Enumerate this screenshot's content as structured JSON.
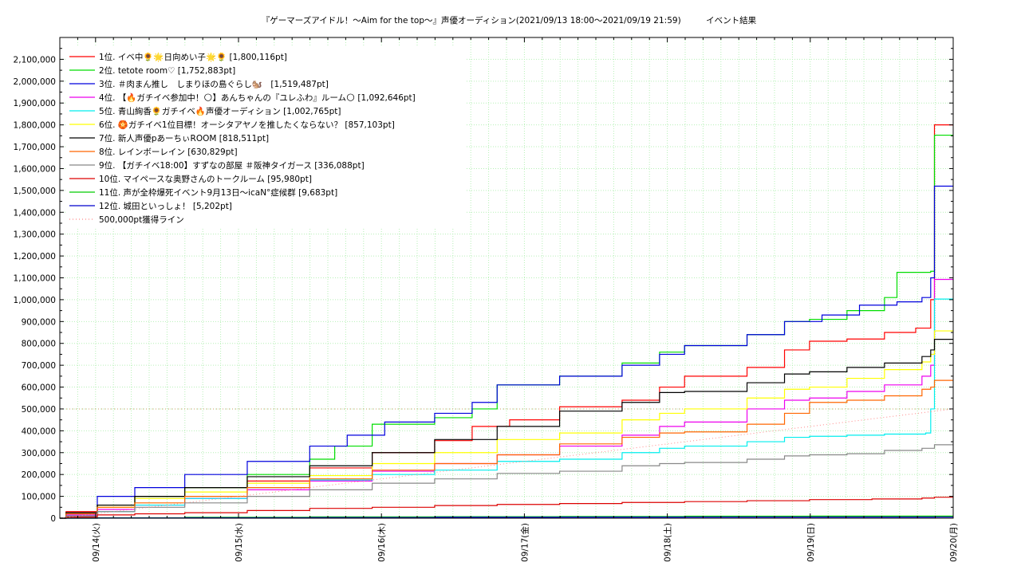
{
  "chart_data": {
    "type": "line",
    "title": "『ゲーマーズアイドル！〜Aim for the top～』声優オーディション(2021/09/13 18:00〜2021/09/19 21:59)　　　イベント結果",
    "xlabel": "",
    "ylabel": "",
    "x_ticks": [
      "09/14(火)",
      "09/15(水)",
      "09/16(木)",
      "09/17(金)",
      "09/18(土)",
      "09/19(日)",
      "09/20(月)"
    ],
    "x_range": [
      "09/13 18:00",
      "09/20 00:00"
    ],
    "ylim": [
      0,
      2200000
    ],
    "y_ticks": [
      0,
      100000,
      200000,
      300000,
      400000,
      500000,
      600000,
      700000,
      800000,
      900000,
      1000000,
      1100000,
      1200000,
      1300000,
      1400000,
      1500000,
      1600000,
      1700000,
      1800000,
      1900000,
      2000000,
      2100000
    ],
    "y_tick_labels": [
      "0",
      "100,000",
      "200,000",
      "300,000",
      "400,000",
      "500,000",
      "600,000",
      "700,000",
      "800,000",
      "900,000",
      "1,000,000",
      "1,100,000",
      "1,200,000",
      "1,300,000",
      "1,400,000",
      "1,500,000",
      "1,600,000",
      "1,700,000",
      "1,800,000",
      "1,900,000",
      "2,000,000",
      "2,100,000"
    ],
    "grid": true,
    "legend_position": "top-left",
    "series": [
      {
        "name": "1位. イベ中🌻🌟日向めい子🌟🌻 [1,800,116pt]",
        "color": "#ff0000",
        "points": [
          [
            0,
            0
          ],
          [
            0.05,
            30000
          ],
          [
            0.3,
            60000
          ],
          [
            0.6,
            100000
          ],
          [
            1,
            140000
          ],
          [
            1.5,
            170000
          ],
          [
            2,
            230000
          ],
          [
            2.5,
            300000
          ],
          [
            3,
            355000
          ],
          [
            3.3,
            420000
          ],
          [
            3.6,
            450000
          ],
          [
            4,
            510000
          ],
          [
            4.5,
            540000
          ],
          [
            4.8,
            600000
          ],
          [
            5,
            650000
          ],
          [
            5.5,
            690000
          ],
          [
            5.8,
            770000
          ],
          [
            6,
            810000
          ],
          [
            6.3,
            820000
          ],
          [
            6.6,
            850000
          ],
          [
            6.85,
            870000
          ],
          [
            6.97,
            1000000
          ],
          [
            7.0,
            1800116
          ],
          [
            7.15,
            1800116
          ]
        ]
      },
      {
        "name": "2位. tetote room♡ [1,752,883pt]",
        "color": "#00dd00",
        "points": [
          [
            0,
            0
          ],
          [
            0.05,
            25000
          ],
          [
            0.3,
            60000
          ],
          [
            0.6,
            100000
          ],
          [
            1,
            140000
          ],
          [
            1.5,
            200000
          ],
          [
            2,
            270000
          ],
          [
            2.2,
            330000
          ],
          [
            2.5,
            430000
          ],
          [
            3,
            460000
          ],
          [
            3.3,
            500000
          ],
          [
            3.5,
            610000
          ],
          [
            4,
            650000
          ],
          [
            4.5,
            710000
          ],
          [
            4.8,
            760000
          ],
          [
            5,
            790000
          ],
          [
            5.5,
            840000
          ],
          [
            5.8,
            900000
          ],
          [
            6,
            910000
          ],
          [
            6.3,
            950000
          ],
          [
            6.6,
            1010000
          ],
          [
            6.7,
            1125000
          ],
          [
            6.97,
            1130000
          ],
          [
            7.0,
            1752883
          ],
          [
            7.15,
            1752883
          ]
        ]
      },
      {
        "name": "3位. ＃肉まん推し　しまりほの島ぐらし🐿️　[1,519,487pt]",
        "color": "#0000dd",
        "points": [
          [
            0,
            0
          ],
          [
            0.05,
            20000
          ],
          [
            0.3,
            100000
          ],
          [
            0.6,
            140000
          ],
          [
            1,
            200000
          ],
          [
            1.5,
            260000
          ],
          [
            2,
            330000
          ],
          [
            2.3,
            380000
          ],
          [
            2.6,
            440000
          ],
          [
            3,
            480000
          ],
          [
            3.3,
            530000
          ],
          [
            3.5,
            610000
          ],
          [
            4,
            650000
          ],
          [
            4.5,
            700000
          ],
          [
            4.8,
            750000
          ],
          [
            5,
            790000
          ],
          [
            5.5,
            840000
          ],
          [
            5.8,
            900000
          ],
          [
            6.1,
            930000
          ],
          [
            6.4,
            975000
          ],
          [
            6.7,
            990000
          ],
          [
            6.9,
            1010000
          ],
          [
            6.97,
            1100000
          ],
          [
            7.0,
            1519487
          ],
          [
            7.15,
            1519487
          ]
        ]
      },
      {
        "name": "4位. 【🔥ガチイベ参加中！🌕】あんちゃんの『ユレふわ』ルーム🌕 [1,092,646pt]",
        "color": "#ee00ee",
        "points": [
          [
            0,
            0
          ],
          [
            0.05,
            15000
          ],
          [
            0.3,
            40000
          ],
          [
            0.6,
            60000
          ],
          [
            1,
            90000
          ],
          [
            1.5,
            130000
          ],
          [
            2,
            170000
          ],
          [
            2.5,
            215000
          ],
          [
            3,
            250000
          ],
          [
            3.5,
            290000
          ],
          [
            4,
            330000
          ],
          [
            4.5,
            380000
          ],
          [
            4.8,
            420000
          ],
          [
            5,
            440000
          ],
          [
            5.5,
            500000
          ],
          [
            5.8,
            540000
          ],
          [
            6,
            550000
          ],
          [
            6.3,
            580000
          ],
          [
            6.6,
            610000
          ],
          [
            6.9,
            650000
          ],
          [
            6.97,
            700000
          ],
          [
            7.0,
            1092646
          ],
          [
            7.15,
            1092646
          ]
        ]
      },
      {
        "name": "5位. 青山絢香🌻ガチイベ🔥声優オーディション [1,002,765pt]",
        "color": "#00eeee",
        "points": [
          [
            0,
            0
          ],
          [
            0.05,
            10000
          ],
          [
            0.3,
            30000
          ],
          [
            0.6,
            60000
          ],
          [
            1,
            90000
          ],
          [
            1.5,
            140000
          ],
          [
            2,
            175000
          ],
          [
            2.5,
            200000
          ],
          [
            3,
            220000
          ],
          [
            3.5,
            260000
          ],
          [
            4,
            270000
          ],
          [
            4.5,
            300000
          ],
          [
            4.8,
            320000
          ],
          [
            5,
            330000
          ],
          [
            5.5,
            350000
          ],
          [
            5.8,
            370000
          ],
          [
            6,
            375000
          ],
          [
            6.3,
            380000
          ],
          [
            6.6,
            385000
          ],
          [
            6.93,
            390000
          ],
          [
            6.97,
            500000
          ],
          [
            7.0,
            1002765
          ],
          [
            7.15,
            1002765
          ]
        ]
      },
      {
        "name": "6位. 🏵️ガチイベ1位目標！オーシタアヤノを推したくならない？ [857,103pt]",
        "color": "#ffff00",
        "points": [
          [
            0,
            0
          ],
          [
            0.05,
            20000
          ],
          [
            0.3,
            50000
          ],
          [
            0.6,
            90000
          ],
          [
            1,
            120000
          ],
          [
            1.5,
            160000
          ],
          [
            2,
            195000
          ],
          [
            2.5,
            250000
          ],
          [
            3,
            300000
          ],
          [
            3.5,
            360000
          ],
          [
            4,
            390000
          ],
          [
            4.5,
            450000
          ],
          [
            4.8,
            480000
          ],
          [
            5,
            500000
          ],
          [
            5.5,
            550000
          ],
          [
            5.8,
            590000
          ],
          [
            6,
            600000
          ],
          [
            6.3,
            640000
          ],
          [
            6.6,
            680000
          ],
          [
            6.9,
            715000
          ],
          [
            6.97,
            750000
          ],
          [
            7.0,
            857103
          ],
          [
            7.15,
            857103
          ]
        ]
      },
      {
        "name": "7位. 新人声優pあーちぃROOM [818,511pt]",
        "color": "#000000",
        "points": [
          [
            0,
            0
          ],
          [
            0.05,
            25000
          ],
          [
            0.3,
            60000
          ],
          [
            0.6,
            100000
          ],
          [
            1,
            140000
          ],
          [
            1.5,
            190000
          ],
          [
            2,
            240000
          ],
          [
            2.5,
            300000
          ],
          [
            3,
            360000
          ],
          [
            3.5,
            420000
          ],
          [
            4,
            490000
          ],
          [
            4.5,
            530000
          ],
          [
            4.8,
            575000
          ],
          [
            5,
            580000
          ],
          [
            5.5,
            620000
          ],
          [
            5.8,
            660000
          ],
          [
            6,
            670000
          ],
          [
            6.3,
            690000
          ],
          [
            6.6,
            710000
          ],
          [
            6.9,
            740000
          ],
          [
            6.97,
            770000
          ],
          [
            7.0,
            818511
          ],
          [
            7.15,
            818511
          ]
        ]
      },
      {
        "name": "8位. レインボーレイン [630,829pt]",
        "color": "#ff6600",
        "points": [
          [
            0,
            0
          ],
          [
            0.05,
            20000
          ],
          [
            0.3,
            50000
          ],
          [
            0.6,
            70000
          ],
          [
            1,
            100000
          ],
          [
            1.5,
            140000
          ],
          [
            2,
            180000
          ],
          [
            2.5,
            220000
          ],
          [
            3,
            250000
          ],
          [
            3.5,
            290000
          ],
          [
            4,
            340000
          ],
          [
            4.5,
            370000
          ],
          [
            4.8,
            390000
          ],
          [
            5,
            395000
          ],
          [
            5.5,
            430000
          ],
          [
            5.8,
            480000
          ],
          [
            6,
            530000
          ],
          [
            6.3,
            540000
          ],
          [
            6.6,
            560000
          ],
          [
            6.9,
            590000
          ],
          [
            6.97,
            600000
          ],
          [
            7.0,
            630829
          ],
          [
            7.15,
            630829
          ]
        ]
      },
      {
        "name": "9位. 【ガチイベ18:00】すずなの部屋 ＃阪神タイガース [336,088pt]",
        "color": "#888888",
        "points": [
          [
            0,
            0
          ],
          [
            0.05,
            10000
          ],
          [
            0.3,
            30000
          ],
          [
            0.6,
            50000
          ],
          [
            1,
            70000
          ],
          [
            1.5,
            100000
          ],
          [
            2,
            130000
          ],
          [
            2.5,
            160000
          ],
          [
            3,
            180000
          ],
          [
            3.5,
            205000
          ],
          [
            4,
            215000
          ],
          [
            4.5,
            240000
          ],
          [
            4.8,
            250000
          ],
          [
            5,
            255000
          ],
          [
            5.5,
            270000
          ],
          [
            5.8,
            285000
          ],
          [
            6,
            290000
          ],
          [
            6.3,
            295000
          ],
          [
            6.6,
            310000
          ],
          [
            6.9,
            320000
          ],
          [
            7.0,
            336088
          ],
          [
            7.15,
            336088
          ]
        ]
      },
      {
        "name": "10位. マイペースな奥野さんのトークルーム [95,980pt]",
        "color": "#dd0000",
        "points": [
          [
            0,
            0
          ],
          [
            0.05,
            5000
          ],
          [
            0.3,
            15000
          ],
          [
            0.6,
            20000
          ],
          [
            1,
            25000
          ],
          [
            1.5,
            35000
          ],
          [
            2,
            45000
          ],
          [
            2.5,
            50000
          ],
          [
            3,
            58000
          ],
          [
            3.5,
            63000
          ],
          [
            4,
            67000
          ],
          [
            4.5,
            72000
          ],
          [
            5,
            76000
          ],
          [
            5.5,
            80000
          ],
          [
            6,
            85000
          ],
          [
            6.5,
            88000
          ],
          [
            6.9,
            92000
          ],
          [
            7.0,
            95980
          ],
          [
            7.15,
            95980
          ]
        ]
      },
      {
        "name": "11位. 声が全枠爆死イベント9月13日〜icaN°症候群 [9,683pt]",
        "color": "#00cc00",
        "points": [
          [
            0,
            0
          ],
          [
            0.3,
            2000
          ],
          [
            1,
            4000
          ],
          [
            2,
            6000
          ],
          [
            3,
            7000
          ],
          [
            4,
            8000
          ],
          [
            5,
            9000
          ],
          [
            6,
            9500
          ],
          [
            7.0,
            9683
          ],
          [
            7.15,
            9683
          ]
        ]
      },
      {
        "name": "12位. 城田といっしょ！ [5,202pt]",
        "color": "#0000cc",
        "points": [
          [
            0,
            0
          ],
          [
            0.3,
            1000
          ],
          [
            1,
            2000
          ],
          [
            2,
            3000
          ],
          [
            3,
            4000
          ],
          [
            4,
            4500
          ],
          [
            5,
            5000
          ],
          [
            6,
            5100
          ],
          [
            7.0,
            5202
          ],
          [
            7.15,
            5202
          ]
        ]
      },
      {
        "name": "500,000pt獲得ライン",
        "color": "#ff8888",
        "dashed": true,
        "points": [
          [
            0,
            0
          ],
          [
            7.15,
            500000
          ]
        ]
      }
    ],
    "hline": {
      "value": 500000,
      "color": "#cc9966"
    }
  }
}
